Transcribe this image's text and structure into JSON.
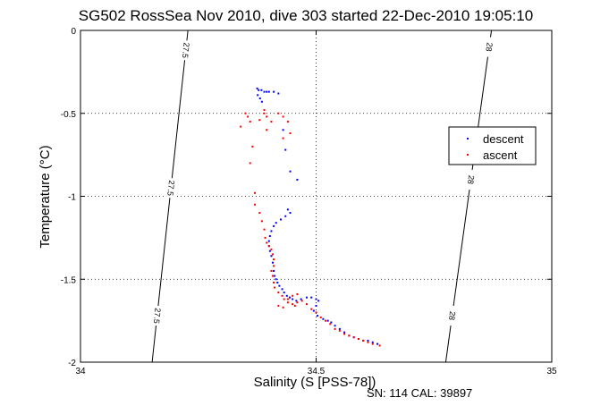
{
  "chart_data": {
    "type": "scatter",
    "title": "SG502 RossSea Nov 2010, dive 303 started 22-Dec-2010 19:05:10",
    "xlabel": "Salinity (S [PSS-78])",
    "ylabel": "Temperature (°C)",
    "xlim": [
      34,
      35
    ],
    "ylim": [
      -2,
      0
    ],
    "x_ticks": [
      "34",
      "34.5",
      "35"
    ],
    "y_ticks": [
      "0",
      "-0.5",
      "-1",
      "-1.5",
      "-2"
    ],
    "grid": "dotted",
    "legend_position": "right",
    "footnote": "SN: 114  CAL: 39897",
    "isopycnals": [
      {
        "label": "27.5",
        "s_at_t0": 34.228,
        "s_at_tmin2": 34.152,
        "label_y": [
          -0.12,
          -0.95,
          -1.72
        ]
      },
      {
        "label": "28",
        "s_at_t0": 34.872,
        "s_at_tmin2": 34.775,
        "label_y": [
          -0.1,
          -0.9,
          -1.72
        ]
      }
    ],
    "series": [
      {
        "name": "descent",
        "color": "#0000ff",
        "points": [
          [
            34.375,
            -0.35
          ],
          [
            34.378,
            -0.36
          ],
          [
            34.384,
            -0.36
          ],
          [
            34.39,
            -0.37
          ],
          [
            34.395,
            -0.37
          ],
          [
            34.4,
            -0.37
          ],
          [
            34.41,
            -0.37
          ],
          [
            34.42,
            -0.38
          ],
          [
            34.376,
            -0.39
          ],
          [
            34.381,
            -0.41
          ],
          [
            34.385,
            -0.43
          ],
          [
            34.43,
            -0.6
          ],
          [
            34.435,
            -0.72
          ],
          [
            34.445,
            -0.85
          ],
          [
            34.46,
            -0.9
          ],
          [
            34.44,
            -1.08
          ],
          [
            34.445,
            -1.1
          ],
          [
            34.435,
            -1.12
          ],
          [
            34.425,
            -1.14
          ],
          [
            34.415,
            -1.16
          ],
          [
            34.41,
            -1.18
          ],
          [
            34.405,
            -1.21
          ],
          [
            34.402,
            -1.24
          ],
          [
            34.4,
            -1.27
          ],
          [
            34.4,
            -1.3
          ],
          [
            34.402,
            -1.33
          ],
          [
            34.405,
            -1.36
          ],
          [
            34.408,
            -1.4
          ],
          [
            34.41,
            -1.45
          ],
          [
            34.412,
            -1.48
          ],
          [
            34.415,
            -1.5
          ],
          [
            34.418,
            -1.52
          ],
          [
            34.422,
            -1.54
          ],
          [
            34.428,
            -1.56
          ],
          [
            34.432,
            -1.58
          ],
          [
            34.438,
            -1.6
          ],
          [
            34.444,
            -1.61
          ],
          [
            34.45,
            -1.62
          ],
          [
            34.458,
            -1.63
          ],
          [
            34.468,
            -1.62
          ],
          [
            34.48,
            -1.61
          ],
          [
            34.49,
            -1.61
          ],
          [
            34.5,
            -1.62
          ],
          [
            34.505,
            -1.63
          ],
          [
            34.5,
            -1.66
          ],
          [
            34.495,
            -1.69
          ],
          [
            34.503,
            -1.72
          ],
          [
            34.515,
            -1.74
          ],
          [
            34.525,
            -1.75
          ],
          [
            34.532,
            -1.76
          ],
          [
            34.54,
            -1.78
          ],
          [
            34.55,
            -1.8
          ],
          [
            34.56,
            -1.82
          ],
          [
            34.57,
            -1.84
          ],
          [
            34.58,
            -1.85
          ],
          [
            34.59,
            -1.86
          ],
          [
            34.6,
            -1.87
          ],
          [
            34.61,
            -1.87
          ],
          [
            34.62,
            -1.88
          ],
          [
            34.63,
            -1.89
          ]
        ]
      },
      {
        "name": "ascent",
        "color": "#ff0000",
        "points": [
          [
            34.35,
            -0.5
          ],
          [
            34.355,
            -0.52
          ],
          [
            34.36,
            -0.55
          ],
          [
            34.34,
            -0.58
          ],
          [
            34.365,
            -0.7
          ],
          [
            34.36,
            -0.8
          ],
          [
            34.39,
            -0.5
          ],
          [
            34.395,
            -0.52
          ],
          [
            34.405,
            -0.55
          ],
          [
            34.42,
            -0.5
          ],
          [
            34.43,
            -0.52
          ],
          [
            34.44,
            -0.55
          ],
          [
            34.445,
            -0.62
          ],
          [
            34.43,
            -0.65
          ],
          [
            34.395,
            -0.6
          ],
          [
            34.39,
            -0.48
          ],
          [
            34.38,
            -0.54
          ],
          [
            34.37,
            -0.98
          ],
          [
            34.37,
            -1.05
          ],
          [
            34.38,
            -1.1
          ],
          [
            34.385,
            -1.15
          ],
          [
            34.39,
            -1.2
          ],
          [
            34.392,
            -1.25
          ],
          [
            34.395,
            -1.28
          ],
          [
            34.4,
            -1.3
          ],
          [
            34.405,
            -1.32
          ],
          [
            34.408,
            -1.35
          ],
          [
            34.41,
            -1.38
          ],
          [
            34.41,
            -1.42
          ],
          [
            34.405,
            -1.45
          ],
          [
            34.408,
            -1.48
          ],
          [
            34.41,
            -1.52
          ],
          [
            34.412,
            -1.55
          ],
          [
            34.42,
            -1.58
          ],
          [
            34.428,
            -1.6
          ],
          [
            34.432,
            -1.62
          ],
          [
            34.44,
            -1.64
          ],
          [
            34.45,
            -1.65
          ],
          [
            34.455,
            -1.66
          ],
          [
            34.46,
            -1.64
          ],
          [
            34.47,
            -1.63
          ],
          [
            34.48,
            -1.65
          ],
          [
            34.49,
            -1.68
          ],
          [
            34.5,
            -1.7
          ],
          [
            34.51,
            -1.73
          ],
          [
            34.52,
            -1.75
          ],
          [
            34.53,
            -1.77
          ],
          [
            34.54,
            -1.8
          ],
          [
            34.55,
            -1.81
          ],
          [
            34.56,
            -1.83
          ],
          [
            34.57,
            -1.84
          ],
          [
            34.58,
            -1.85
          ],
          [
            34.59,
            -1.86
          ],
          [
            34.6,
            -1.87
          ],
          [
            34.61,
            -1.88
          ],
          [
            34.62,
            -1.89
          ],
          [
            34.635,
            -1.9
          ],
          [
            34.42,
            -1.66
          ],
          [
            34.43,
            -1.67
          ],
          [
            34.44,
            -1.62
          ],
          [
            34.45,
            -1.6
          ],
          [
            34.46,
            -1.59
          ]
        ]
      }
    ]
  }
}
